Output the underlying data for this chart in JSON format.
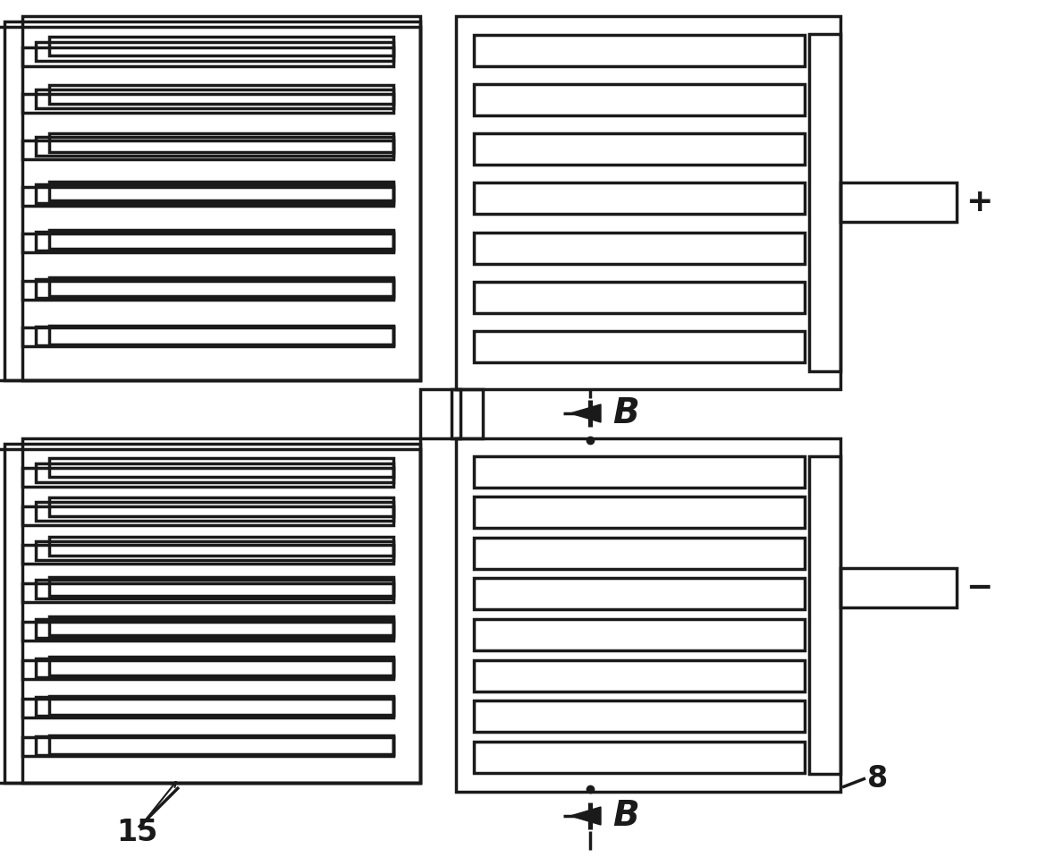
{
  "bg_color": "#ffffff",
  "line_color": "#1a1a1a",
  "lw": 2.5,
  "fig_w": 11.61,
  "fig_h": 9.68
}
